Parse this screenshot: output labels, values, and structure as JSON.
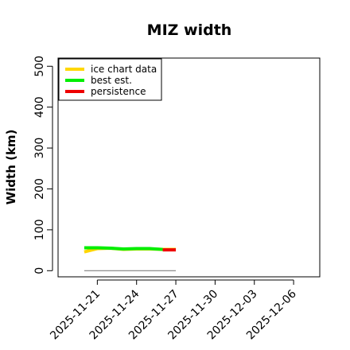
{
  "chart_data": {
    "type": "line",
    "title": "MIZ width",
    "xlabel": "",
    "ylabel": "Width (km)",
    "x_axis_type": "date",
    "xlim": [
      "2025-11-18",
      "2025-12-08"
    ],
    "ylim": [
      -15,
      520
    ],
    "yticks": [
      0,
      100,
      200,
      300,
      400,
      500
    ],
    "xticks": [
      "2025-11-21",
      "2025-11-24",
      "2025-11-27",
      "2025-11-30",
      "2025-12-03",
      "2025-12-06"
    ],
    "grid": false,
    "legend_position": "top-left",
    "reference_line": {
      "y": 0,
      "x": [
        "2025-11-20",
        "2025-11-27"
      ],
      "color": "#808080"
    },
    "series": [
      {
        "name": "ice chart data",
        "color": "#FFD700",
        "x": [
          "2025-11-20",
          "2025-11-21",
          "2025-11-22",
          "2025-11-23",
          "2025-11-24",
          "2025-11-25",
          "2025-11-26",
          "2025-11-27"
        ],
        "values": [
          46,
          54,
          55,
          52,
          53,
          53,
          52,
          52
        ]
      },
      {
        "name": "best est.",
        "color": "#00EE00",
        "x": [
          "2025-11-20",
          "2025-11-21",
          "2025-11-22",
          "2025-11-23",
          "2025-11-24",
          "2025-11-25",
          "2025-11-26"
        ],
        "values": [
          56,
          56,
          55,
          53,
          54,
          54,
          52
        ]
      },
      {
        "name": "persistence",
        "color": "#EE0000",
        "x": [
          "2025-11-26",
          "2025-11-27"
        ],
        "values": [
          51,
          51
        ]
      }
    ]
  }
}
